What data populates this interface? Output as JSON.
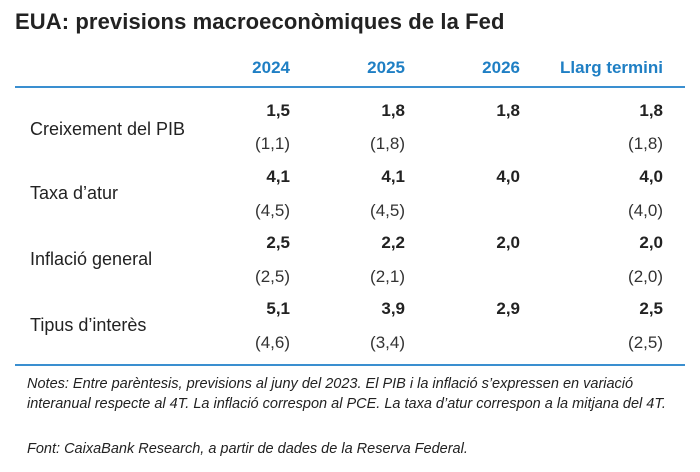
{
  "title": "EUA: previsions macroeconòmiques de la Fed",
  "columns": [
    "2024",
    "2025",
    "2026",
    "Llarg termini"
  ],
  "rows": [
    {
      "label": "Creixement del PIB",
      "values": [
        "1,5",
        "1,8",
        "1,8",
        "1,8"
      ],
      "previous": [
        "(1,1)",
        "(1,8)",
        "",
        "(1,8)"
      ]
    },
    {
      "label": "Taxa d’atur",
      "values": [
        "4,1",
        "4,1",
        "4,0",
        "4,0"
      ],
      "previous": [
        "(4,5)",
        "(4,5)",
        "",
        "(4,0)"
      ]
    },
    {
      "label": "Inflació general",
      "values": [
        "2,5",
        "2,2",
        "2,0",
        "2,0"
      ],
      "previous": [
        "(2,5)",
        "(2,1)",
        "",
        "(2,0)"
      ]
    },
    {
      "label": "Tipus d’interès",
      "values": [
        "5,1",
        "3,9",
        "2,9",
        "2,5"
      ],
      "previous": [
        "(4,6)",
        "(3,4)",
        "",
        "(2,5)"
      ]
    }
  ],
  "notes": "Notes: Entre parèntesis, previsions al juny del 2023. El PIB i la inflació s’expressen en variació interanual respecte al 4T. La inflació correspon al PCE. La taxa d’atur correspon a la mitjana del 4T.",
  "source": "Font: CaixaBank Research, a partir de dades de la Reserva Federal.",
  "colors": {
    "header": "#1f7fc4",
    "rule": "#3a8fd0",
    "text": "#222222"
  }
}
